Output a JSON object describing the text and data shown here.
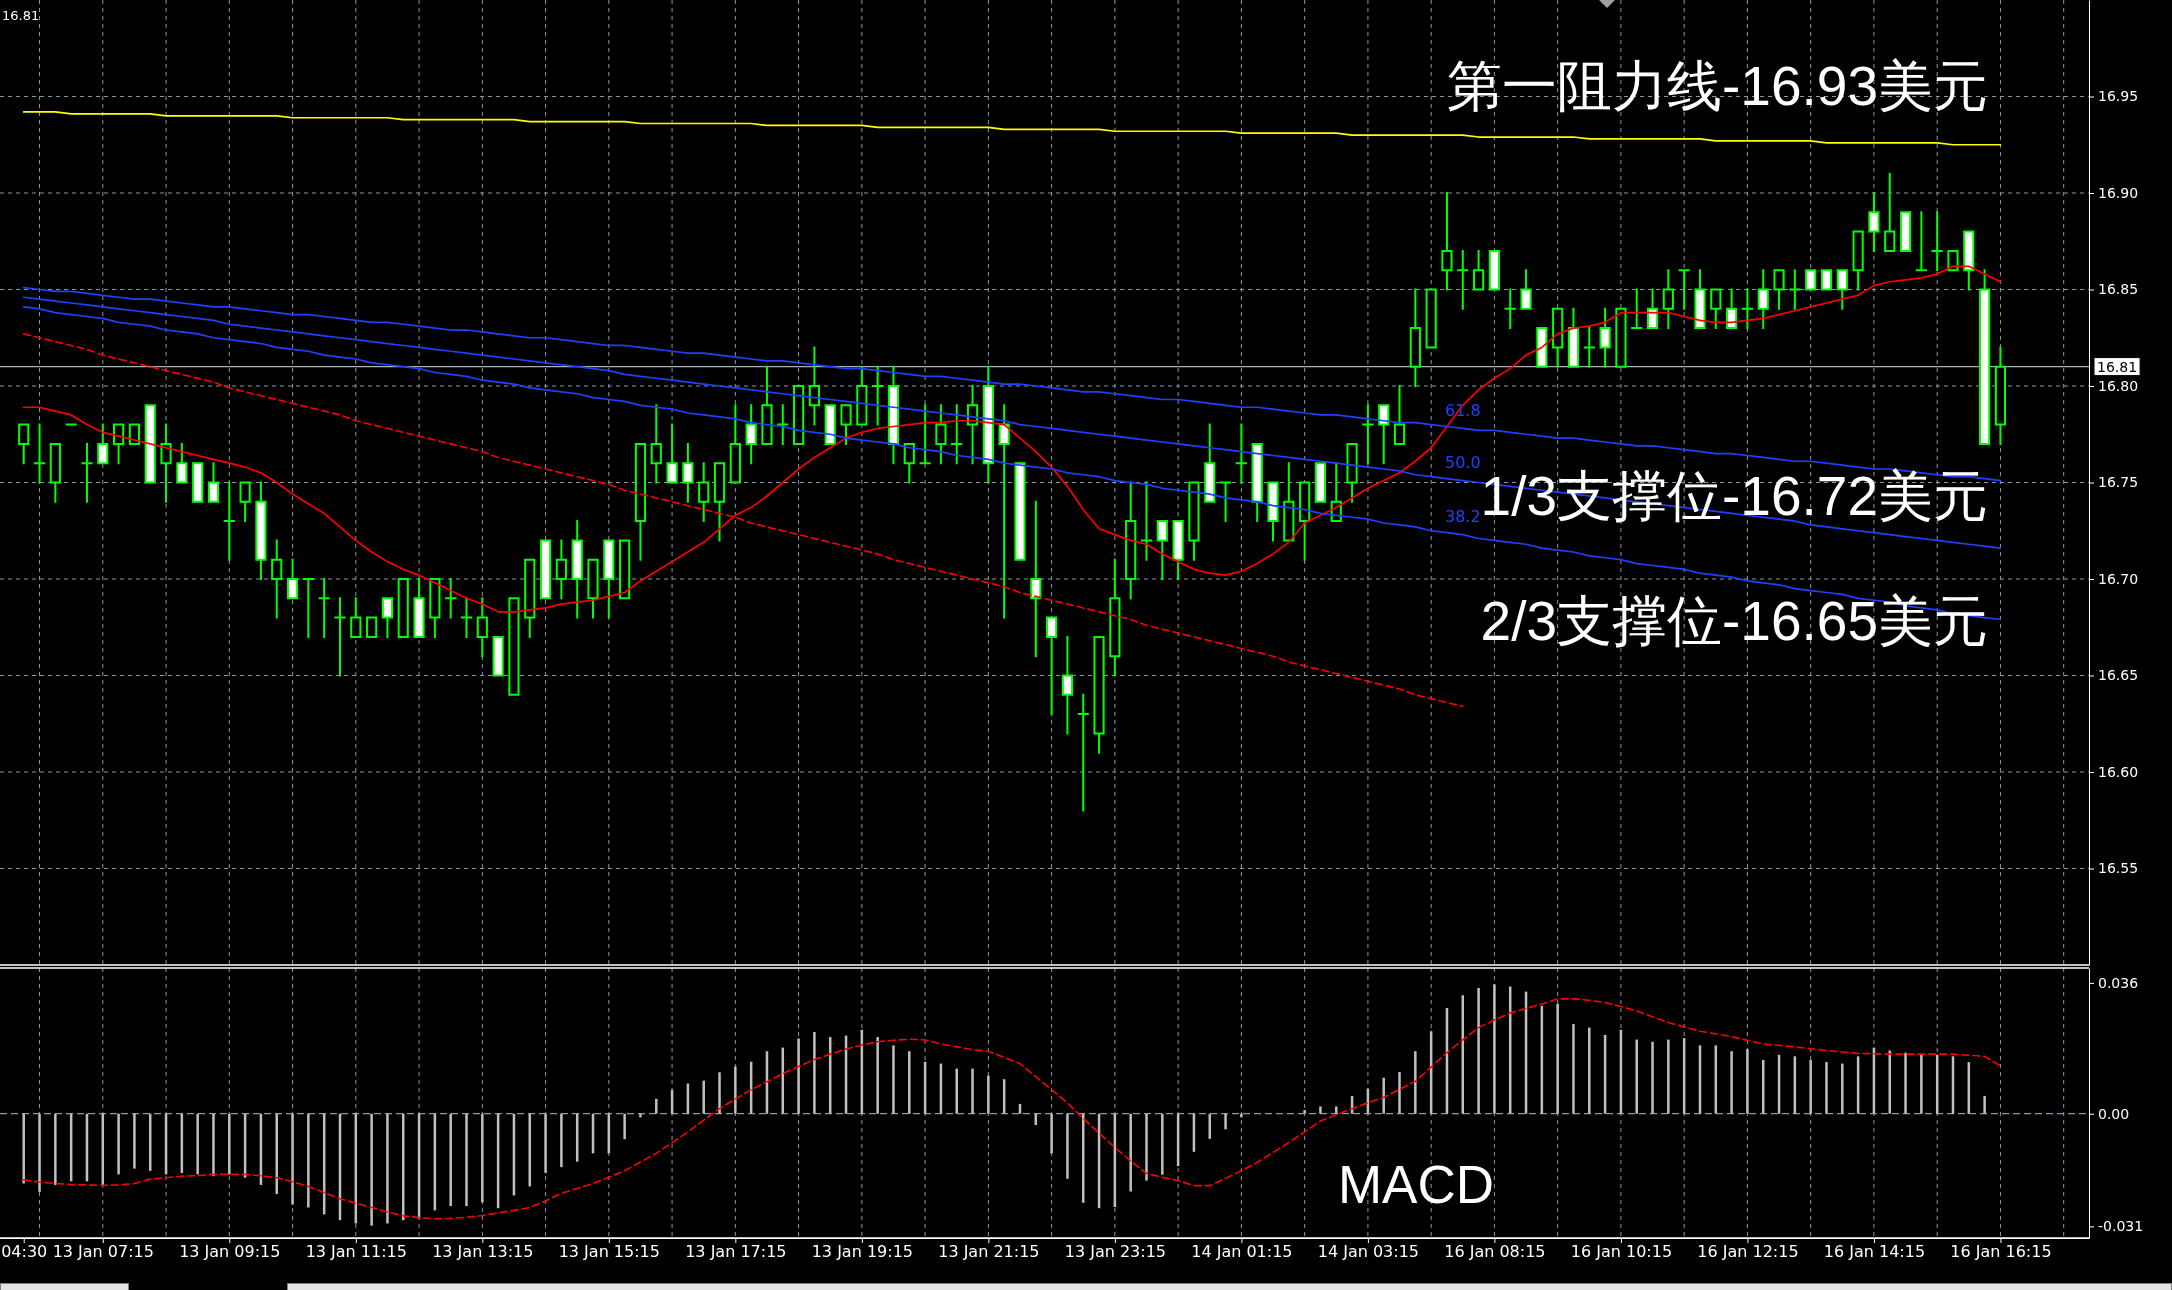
{
  "chart_data": [
    {
      "type": "candlestick",
      "categories": [
        null,
        null,
        null,
        null,
        null,
        null,
        null,
        null,
        null,
        null,
        null,
        null,
        null,
        null,
        null,
        null,
        null,
        null,
        null,
        null,
        null,
        null,
        null,
        null,
        null,
        null,
        null,
        null,
        null,
        null,
        null,
        null,
        null,
        null,
        null,
        null,
        null,
        null,
        null,
        null,
        null,
        null,
        null,
        null,
        null,
        null,
        null,
        null,
        null,
        null,
        null,
        null,
        null,
        null,
        null,
        null,
        null,
        null,
        null,
        null,
        null,
        null,
        null,
        null,
        null,
        null,
        null,
        null,
        null,
        null,
        null,
        null,
        null,
        null,
        null,
        null,
        null,
        null,
        null,
        null,
        null,
        null,
        null,
        null,
        null,
        null,
        null,
        null,
        null,
        null,
        null,
        null,
        null,
        null,
        null,
        null,
        null,
        null,
        null,
        null,
        null,
        null,
        null,
        null,
        null,
        null,
        null,
        null,
        null,
        null,
        null,
        null,
        null,
        null,
        null,
        null,
        null,
        null,
        null,
        null,
        null,
        null,
        null,
        null,
        null,
        null
      ],
      "ohlc": [
        [
          16.77,
          16.78,
          16.76,
          16.78
        ],
        [
          16.76,
          16.78,
          16.75,
          16.76
        ],
        [
          16.75,
          16.77,
          16.74,
          16.77
        ],
        [
          16.78,
          16.78,
          16.78,
          16.78
        ],
        [
          16.76,
          16.77,
          16.74,
          16.76
        ],
        [
          16.77,
          16.78,
          16.76,
          16.76
        ],
        [
          16.77,
          16.78,
          16.76,
          16.78
        ],
        [
          16.77,
          16.78,
          16.77,
          16.78
        ],
        [
          16.79,
          16.79,
          16.75,
          16.75
        ],
        [
          16.76,
          16.78,
          16.74,
          16.77
        ],
        [
          16.76,
          16.77,
          16.75,
          16.75
        ],
        [
          16.76,
          16.76,
          16.74,
          16.74
        ],
        [
          16.75,
          16.76,
          16.74,
          16.74
        ],
        [
          16.73,
          16.75,
          16.71,
          16.73
        ],
        [
          16.74,
          16.75,
          16.73,
          16.75
        ],
        [
          16.74,
          16.75,
          16.7,
          16.71
        ],
        [
          16.7,
          16.72,
          16.68,
          16.71
        ],
        [
          16.7,
          16.71,
          16.69,
          16.69
        ],
        [
          16.7,
          16.7,
          16.67,
          16.7
        ],
        [
          16.69,
          16.7,
          16.67,
          16.69
        ],
        [
          16.68,
          16.69,
          16.65,
          16.68
        ],
        [
          16.67,
          16.69,
          16.67,
          16.68
        ],
        [
          16.67,
          16.68,
          16.67,
          16.68
        ],
        [
          16.69,
          16.69,
          16.67,
          16.68
        ],
        [
          16.67,
          16.7,
          16.67,
          16.7
        ],
        [
          16.69,
          16.7,
          16.67,
          16.67
        ],
        [
          16.68,
          16.7,
          16.67,
          16.7
        ],
        [
          16.69,
          16.7,
          16.68,
          16.69
        ],
        [
          16.68,
          16.69,
          16.67,
          16.68
        ],
        [
          16.67,
          16.69,
          16.66,
          16.68
        ],
        [
          16.67,
          16.67,
          16.65,
          16.65
        ],
        [
          16.64,
          16.69,
          16.64,
          16.69
        ],
        [
          16.68,
          16.71,
          16.67,
          16.71
        ],
        [
          16.72,
          16.72,
          16.69,
          16.69
        ],
        [
          16.7,
          16.72,
          16.69,
          16.71
        ],
        [
          16.72,
          16.73,
          16.68,
          16.7
        ],
        [
          16.69,
          16.71,
          16.68,
          16.71
        ],
        [
          16.72,
          16.72,
          16.68,
          16.7
        ],
        [
          16.69,
          16.72,
          16.69,
          16.72
        ],
        [
          16.73,
          16.77,
          16.71,
          16.77
        ],
        [
          16.76,
          16.79,
          16.75,
          16.77
        ],
        [
          16.76,
          16.78,
          16.75,
          16.75
        ],
        [
          16.76,
          16.77,
          16.74,
          16.75
        ],
        [
          16.74,
          16.76,
          16.73,
          16.75
        ],
        [
          16.74,
          16.76,
          16.72,
          16.76
        ],
        [
          16.75,
          16.79,
          16.75,
          16.77
        ],
        [
          16.78,
          16.79,
          16.76,
          16.77
        ],
        [
          16.77,
          16.81,
          16.77,
          16.79
        ],
        [
          16.78,
          16.79,
          16.77,
          16.78
        ],
        [
          16.77,
          16.8,
          16.77,
          16.8
        ],
        [
          16.79,
          16.82,
          16.78,
          16.8
        ],
        [
          16.79,
          16.79,
          16.77,
          16.77
        ],
        [
          16.78,
          16.79,
          16.77,
          16.79
        ],
        [
          16.78,
          16.81,
          16.78,
          16.8
        ],
        [
          16.8,
          16.81,
          16.78,
          16.8
        ],
        [
          16.8,
          16.81,
          16.76,
          16.77
        ],
        [
          16.76,
          16.77,
          16.75,
          16.77
        ],
        [
          16.76,
          16.79,
          16.76,
          16.76
        ],
        [
          16.77,
          16.79,
          16.76,
          16.78
        ],
        [
          16.77,
          16.79,
          16.76,
          16.77
        ],
        [
          16.78,
          16.8,
          16.76,
          16.79
        ],
        [
          16.8,
          16.81,
          16.75,
          16.76
        ],
        [
          16.78,
          16.79,
          16.68,
          16.77
        ],
        [
          16.76,
          16.76,
          16.71,
          16.71
        ],
        [
          16.7,
          16.74,
          16.66,
          16.69
        ],
        [
          16.68,
          16.68,
          16.63,
          16.67
        ],
        [
          16.65,
          16.67,
          16.62,
          16.64
        ],
        [
          16.63,
          16.64,
          16.58,
          16.63
        ],
        [
          16.62,
          16.67,
          16.61,
          16.67
        ],
        [
          16.66,
          16.71,
          16.65,
          16.69
        ],
        [
          16.7,
          16.75,
          16.69,
          16.73
        ],
        [
          16.72,
          16.75,
          16.71,
          16.72
        ],
        [
          16.73,
          16.73,
          16.7,
          16.72
        ],
        [
          16.73,
          16.73,
          16.7,
          16.71
        ],
        [
          16.72,
          16.75,
          16.71,
          16.75
        ],
        [
          16.76,
          16.78,
          16.74,
          16.74
        ],
        [
          16.75,
          16.75,
          16.73,
          16.75
        ],
        [
          16.76,
          16.78,
          16.75,
          16.76
        ],
        [
          16.77,
          16.77,
          16.73,
          16.74
        ],
        [
          16.75,
          16.75,
          16.72,
          16.73
        ],
        [
          16.72,
          16.76,
          16.72,
          16.74
        ],
        [
          16.73,
          16.75,
          16.71,
          16.75
        ],
        [
          16.76,
          16.76,
          16.74,
          16.74
        ],
        [
          16.73,
          16.76,
          16.73,
          16.74
        ],
        [
          16.75,
          16.77,
          16.74,
          16.77
        ],
        [
          16.78,
          16.79,
          16.76,
          16.78
        ],
        [
          16.79,
          16.79,
          16.76,
          16.78
        ],
        [
          16.77,
          16.8,
          16.77,
          16.78
        ],
        [
          16.81,
          16.85,
          16.8,
          16.83
        ],
        [
          16.82,
          16.85,
          16.82,
          16.85
        ],
        [
          16.86,
          16.9,
          16.85,
          16.87
        ],
        [
          16.86,
          16.87,
          16.84,
          16.86
        ],
        [
          16.85,
          16.87,
          16.85,
          16.86
        ],
        [
          16.87,
          16.87,
          16.85,
          16.85
        ],
        [
          16.84,
          16.85,
          16.83,
          16.84
        ],
        [
          16.85,
          16.86,
          16.84,
          16.84
        ],
        [
          16.83,
          16.83,
          16.81,
          16.81
        ],
        [
          16.82,
          16.84,
          16.81,
          16.84
        ],
        [
          16.83,
          16.84,
          16.81,
          16.81
        ],
        [
          16.82,
          16.83,
          16.81,
          16.82
        ],
        [
          16.83,
          16.84,
          16.81,
          16.82
        ],
        [
          16.81,
          16.84,
          16.81,
          16.84
        ],
        [
          16.83,
          16.85,
          16.83,
          16.83
        ],
        [
          16.84,
          16.85,
          16.83,
          16.83
        ],
        [
          16.84,
          16.86,
          16.83,
          16.85
        ],
        [
          16.86,
          16.86,
          16.84,
          16.86
        ],
        [
          16.85,
          16.86,
          16.83,
          16.83
        ],
        [
          16.84,
          16.85,
          16.83,
          16.85
        ],
        [
          16.84,
          16.85,
          16.83,
          16.83
        ],
        [
          16.84,
          16.85,
          16.83,
          16.84
        ],
        [
          16.85,
          16.86,
          16.83,
          16.84
        ],
        [
          16.85,
          16.86,
          16.84,
          16.86
        ],
        [
          16.85,
          16.86,
          16.84,
          16.85
        ],
        [
          16.86,
          16.86,
          16.85,
          16.85
        ],
        [
          16.86,
          16.86,
          16.85,
          16.85
        ],
        [
          16.86,
          16.86,
          16.84,
          16.85
        ],
        [
          16.86,
          16.88,
          16.85,
          16.88
        ],
        [
          16.89,
          16.9,
          16.87,
          16.88
        ],
        [
          16.87,
          16.91,
          16.87,
          16.88
        ],
        [
          16.89,
          16.89,
          16.87,
          16.87
        ],
        [
          16.86,
          16.89,
          16.86,
          16.86
        ],
        [
          16.87,
          16.89,
          16.86,
          16.87
        ],
        [
          16.86,
          16.87,
          16.86,
          16.87
        ],
        [
          16.88,
          16.88,
          16.85,
          16.86
        ],
        [
          16.85,
          16.86,
          16.77,
          16.77
        ],
        [
          16.78,
          16.82,
          16.77,
          16.81
        ]
      ],
      "color": "#00ff00",
      "colors": [
        "#000000",
        "#00ff00",
        "#000000",
        "#00ff00",
        "#00ff00",
        "#ffffff",
        "#000000",
        "#000000",
        "#ffffff",
        "#000000",
        "#ffffff",
        "#ffffff",
        "#ffffff",
        "#00ff00",
        "#000000",
        "#ffffff",
        "#000000",
        "#ffffff",
        "#00ff00",
        "#00ff00",
        "#00ff00",
        "#000000",
        "#000000",
        "#ffffff",
        "#000000",
        "#ffffff",
        "#000000",
        "#00ff00",
        "#00ff00",
        "#000000",
        "#ffffff",
        "#000000",
        "#000000",
        "#ffffff",
        "#000000",
        "#ffffff",
        "#000000",
        "#ffffff",
        "#000000",
        "#000000",
        "#000000",
        "#ffffff",
        "#ffffff",
        "#000000",
        "#000000",
        "#000000",
        "#ffffff",
        "#000000",
        "#00ff00",
        "#000000",
        "#000000",
        "#ffffff",
        "#000000",
        "#000000",
        "#00ff00",
        "#ffffff",
        "#000000",
        "#00ff00",
        "#000000",
        "#00ff00",
        "#000000",
        "#ffffff",
        "#ffffff",
        "#ffffff",
        "#ffffff",
        "#ffffff",
        "#ffffff",
        "#00ff00",
        "#000000",
        "#000000",
        "#000000",
        "#00ff00",
        "#ffffff",
        "#ffffff",
        "#000000",
        "#ffffff",
        "#00ff00",
        "#00ff00",
        "#ffffff",
        "#ffffff",
        "#000000",
        "#000000",
        "#ffffff",
        "#000000",
        "#000000",
        "#00ff00",
        "#ffffff",
        "#000000",
        "#000000",
        "#000000",
        "#000000",
        "#00ff00",
        "#000000",
        "#ffffff",
        "#00ff00",
        "#ffffff",
        "#ffffff",
        "#000000",
        "#ffffff",
        "#00ff00",
        "#ffffff",
        "#000000",
        "#00ff00",
        "#ffffff",
        "#000000",
        "#00ff00",
        "#ffffff",
        "#000000",
        "#ffffff",
        "#00ff00",
        "#ffffff",
        "#000000",
        "#00ff00",
        "#ffffff",
        "#ffffff",
        "#ffffff",
        "#000000",
        "#ffffff",
        "#000000",
        "#ffffff",
        "#00ff00",
        "#00ff00",
        "#000000",
        "#ffffff",
        "#ffffff",
        "#000000"
      ],
      "series": [
        {
          "type": "line",
          "color": "#ff0000",
          "values": [
            16.789,
            16.789,
            16.787,
            16.785,
            16.78,
            16.776,
            16.774,
            16.772,
            16.77,
            16.768,
            16.766,
            16.764,
            16.762,
            16.76,
            16.758,
            16.755,
            16.75,
            16.744,
            16.739,
            16.734,
            16.727,
            16.72,
            16.714,
            16.709,
            16.705,
            16.702,
            16.698,
            16.694,
            16.69,
            16.687,
            16.683,
            16.683,
            16.684,
            16.685,
            16.687,
            16.688,
            16.689,
            16.691,
            16.693,
            16.699,
            16.704,
            16.709,
            16.714,
            16.719,
            16.726,
            16.733,
            16.737,
            16.743,
            16.75,
            16.757,
            16.763,
            16.768,
            16.773,
            16.776,
            16.778,
            16.779,
            16.78,
            16.781,
            16.781,
            16.782,
            16.782,
            16.781,
            16.78,
            16.773,
            16.766,
            16.758,
            16.748,
            16.736,
            16.726,
            16.723,
            16.72,
            16.718,
            16.713,
            16.709,
            16.705,
            16.703,
            16.702,
            16.704,
            16.708,
            16.713,
            16.719,
            16.729,
            16.733,
            16.737,
            16.742,
            16.747,
            16.751,
            16.755,
            16.761,
            16.768,
            16.779,
            16.79,
            16.798,
            16.804,
            16.809,
            16.816,
            16.82,
            16.827,
            16.83,
            16.831,
            16.833,
            16.838,
            16.838,
            16.838,
            16.838,
            16.836,
            16.834,
            16.833,
            16.833,
            16.834,
            16.835,
            16.837,
            16.839,
            16.841,
            16.843,
            16.845,
            16.847,
            16.852,
            16.854,
            16.855,
            16.856,
            16.858,
            16.862,
            16.862,
            16.858,
            16.854
          ]
        },
        {
          "type": "line",
          "color": "#ffff00",
          "values": [
            16.942,
            16.942,
            16.942,
            16.941,
            16.941,
            16.941,
            16.941,
            16.941,
            16.941,
            16.94,
            16.94,
            16.94,
            16.94,
            16.94,
            16.94,
            16.94,
            16.94,
            16.939,
            16.939,
            16.939,
            16.939,
            16.939,
            16.939,
            16.939,
            16.938,
            16.938,
            16.938,
            16.938,
            16.938,
            16.938,
            16.938,
            16.938,
            16.937,
            16.937,
            16.937,
            16.937,
            16.937,
            16.937,
            16.937,
            16.936,
            16.936,
            16.936,
            16.936,
            16.936,
            16.936,
            16.936,
            16.936,
            16.935,
            16.935,
            16.935,
            16.935,
            16.935,
            16.935,
            16.935,
            16.934,
            16.934,
            16.934,
            16.934,
            16.934,
            16.934,
            16.934,
            16.934,
            16.933,
            16.933,
            16.933,
            16.933,
            16.933,
            16.933,
            16.933,
            16.932,
            16.932,
            16.932,
            16.932,
            16.932,
            16.932,
            16.932,
            16.932,
            16.931,
            16.931,
            16.931,
            16.931,
            16.931,
            16.931,
            16.931,
            16.93,
            16.93,
            16.93,
            16.93,
            16.93,
            16.93,
            16.93,
            16.93,
            16.929,
            16.929,
            16.929,
            16.929,
            16.929,
            16.929,
            16.929,
            16.928,
            16.928,
            16.928,
            16.928,
            16.928,
            16.928,
            16.928,
            16.928,
            16.927,
            16.927,
            16.927,
            16.927,
            16.927,
            16.927,
            16.927,
            16.926,
            16.926,
            16.926,
            16.926,
            16.926,
            16.926,
            16.926,
            16.926,
            16.925,
            16.925,
            16.925,
            16.925
          ]
        },
        {
          "type": "line",
          "name": "61.8",
          "color": "#2040ff",
          "values": [
            16.851,
            16.85,
            16.849,
            16.849,
            16.848,
            16.847,
            16.846,
            16.845,
            16.845,
            16.844,
            16.843,
            16.842,
            16.841,
            16.841,
            16.84,
            16.839,
            16.838,
            16.837,
            16.837,
            16.836,
            16.835,
            16.834,
            16.833,
            16.833,
            16.832,
            16.831,
            16.83,
            16.829,
            16.829,
            16.828,
            16.827,
            16.826,
            16.825,
            16.825,
            16.824,
            16.823,
            16.822,
            16.821,
            16.821,
            16.82,
            16.819,
            16.818,
            16.817,
            16.817,
            16.816,
            16.815,
            16.814,
            16.813,
            16.813,
            16.812,
            16.811,
            16.81,
            16.809,
            16.809,
            16.808,
            16.807,
            16.806,
            16.805,
            16.805,
            16.804,
            16.803,
            16.802,
            16.801,
            16.801,
            16.8,
            16.799,
            16.798,
            16.797,
            16.797,
            16.796,
            16.795,
            16.794,
            16.793,
            16.793,
            16.792,
            16.791,
            16.79,
            16.789,
            16.789,
            16.788,
            16.787,
            16.786,
            16.785,
            16.785,
            16.784,
            16.783,
            16.782,
            16.781,
            16.781,
            16.78,
            16.779,
            16.778,
            16.777,
            16.777,
            16.776,
            16.775,
            16.774,
            16.773,
            16.773,
            16.772,
            16.771,
            16.77,
            16.769,
            16.769,
            16.768,
            16.767,
            16.766,
            16.765,
            16.765,
            16.764,
            16.763,
            16.762,
            16.761,
            16.761,
            16.76,
            16.759,
            16.758,
            16.757,
            16.757,
            16.756,
            16.755,
            16.754,
            16.753,
            16.753,
            16.752,
            16.751
          ]
        },
        {
          "type": "line",
          "name": "50.0",
          "color": "#2040ff",
          "values": [
            16.846,
            16.845,
            16.844,
            16.843,
            16.842,
            16.841,
            16.84,
            16.839,
            16.838,
            16.837,
            16.836,
            16.835,
            16.834,
            16.832,
            16.831,
            16.83,
            16.829,
            16.828,
            16.827,
            16.826,
            16.825,
            16.824,
            16.823,
            16.822,
            16.821,
            16.82,
            16.819,
            16.818,
            16.817,
            16.816,
            16.815,
            16.814,
            16.813,
            16.812,
            16.811,
            16.81,
            16.809,
            16.808,
            16.806,
            16.805,
            16.804,
            16.803,
            16.802,
            16.801,
            16.8,
            16.799,
            16.798,
            16.797,
            16.796,
            16.795,
            16.794,
            16.793,
            16.792,
            16.791,
            16.79,
            16.789,
            16.788,
            16.787,
            16.786,
            16.785,
            16.784,
            16.783,
            16.782,
            16.78,
            16.779,
            16.778,
            16.777,
            16.776,
            16.775,
            16.774,
            16.773,
            16.772,
            16.771,
            16.77,
            16.769,
            16.768,
            16.767,
            16.766,
            16.765,
            16.764,
            16.763,
            16.762,
            16.761,
            16.76,
            16.759,
            16.758,
            16.757,
            16.756,
            16.754,
            16.753,
            16.752,
            16.751,
            16.75,
            16.749,
            16.748,
            16.747,
            16.746,
            16.745,
            16.744,
            16.743,
            16.742,
            16.741,
            16.74,
            16.739,
            16.738,
            16.737,
            16.736,
            16.735,
            16.734,
            16.733,
            16.732,
            16.731,
            16.73,
            16.728,
            16.727,
            16.726,
            16.725,
            16.724,
            16.723,
            16.722,
            16.721,
            16.72,
            16.719,
            16.718,
            16.717,
            16.716
          ]
        },
        {
          "type": "line",
          "name": "38.2",
          "color": "#2040ff",
          "values": [
            16.841,
            16.84,
            16.838,
            16.837,
            16.836,
            16.835,
            16.833,
            16.832,
            16.831,
            16.829,
            16.828,
            16.827,
            16.825,
            16.824,
            16.823,
            16.822,
            16.82,
            16.819,
            16.818,
            16.816,
            16.815,
            16.814,
            16.812,
            16.811,
            16.81,
            16.809,
            16.807,
            16.806,
            16.805,
            16.803,
            16.802,
            16.801,
            16.799,
            16.798,
            16.797,
            16.796,
            16.794,
            16.793,
            16.792,
            16.79,
            16.789,
            16.788,
            16.786,
            16.785,
            16.784,
            16.783,
            16.781,
            16.78,
            16.779,
            16.777,
            16.776,
            16.775,
            16.773,
            16.772,
            16.771,
            16.77,
            16.768,
            16.767,
            16.766,
            16.764,
            16.763,
            16.762,
            16.76,
            16.759,
            16.758,
            16.757,
            16.755,
            16.754,
            16.753,
            16.751,
            16.75,
            16.749,
            16.747,
            16.746,
            16.745,
            16.744,
            16.742,
            16.741,
            16.74,
            16.738,
            16.737,
            16.736,
            16.734,
            16.733,
            16.732,
            16.731,
            16.729,
            16.728,
            16.727,
            16.725,
            16.724,
            16.723,
            16.721,
            16.72,
            16.719,
            16.718,
            16.716,
            16.715,
            16.714,
            16.712,
            16.711,
            16.71,
            16.708,
            16.707,
            16.706,
            16.705,
            16.703,
            16.702,
            16.701,
            16.699,
            16.698,
            16.697,
            16.695,
            16.694,
            16.693,
            16.692,
            16.69,
            16.689,
            16.688,
            16.686,
            16.685,
            16.684,
            16.682,
            16.681,
            16.68,
            16.679
          ]
        },
        {
          "type": "line",
          "color": "#ff0000",
          "line_style": "dashed",
          "values": [
            16.827,
            16.825,
            16.823,
            16.821,
            16.819,
            16.816,
            16.814,
            16.812,
            16.81,
            16.808,
            16.806,
            16.804,
            16.802,
            16.799,
            16.797,
            16.795,
            16.793,
            16.791,
            16.789,
            16.787,
            16.785,
            16.782,
            16.78,
            16.778,
            16.776,
            16.774,
            16.772,
            16.77,
            16.768,
            16.766,
            16.763,
            16.761,
            16.759,
            16.757,
            16.755,
            16.753,
            16.751,
            16.749,
            16.746,
            16.744,
            16.742,
            16.74,
            16.738,
            16.736,
            16.734,
            16.732,
            16.729,
            16.727,
            16.725,
            16.723,
            16.721,
            16.719,
            16.717,
            16.715,
            16.713,
            16.71,
            16.708,
            16.706,
            16.704,
            16.702,
            16.7,
            16.698,
            16.696,
            16.693,
            16.691,
            16.689,
            16.687,
            16.685,
            16.683,
            16.681,
            16.679,
            16.676,
            16.674,
            16.672,
            16.67,
            16.668,
            16.666,
            16.664,
            16.662,
            16.66,
            16.657,
            16.655,
            16.653,
            16.651,
            16.649,
            16.647,
            16.645,
            16.643,
            16.64,
            16.638,
            16.636,
            16.634,
            null,
            null,
            null,
            null,
            null,
            null,
            null,
            null,
            null,
            null,
            null,
            null,
            null,
            null,
            null,
            null,
            null,
            null,
            null,
            null,
            null,
            null,
            null,
            null,
            null,
            null,
            null,
            null,
            null,
            null,
            null,
            null,
            null,
            null
          ]
        }
      ],
      "ylim": [
        16.5,
        17.0
      ],
      "yticks": [
        16.55,
        {
          "value": 16.6,
          "label": "16.60"
        },
        16.65,
        {
          "value": 16.7,
          "label": "16.70"
        },
        16.75,
        {
          "value": 16.8,
          "label": "16.80"
        },
        16.85,
        {
          "value": 16.9,
          "label": "16.90"
        },
        16.95
      ],
      "grid": true,
      "tick_labels": "y",
      "ref_lines": [
        {
          "axis": "y",
          "value": 16.81,
          "label": "16.81",
          "color": "#a8b0b8"
        }
      ],
      "annotations": [
        "16.81",
        "第一阻力线-16.93美元",
        "1/3支撑位-16.72美元",
        "2/3支撑位-16.65美元"
      ]
    },
    {
      "type": "bar",
      "categories": [
        "04:30",
        null,
        null,
        null,
        null,
        "13 Jan 07:15",
        null,
        null,
        null,
        null,
        null,
        null,
        null,
        "13 Jan 09:15",
        null,
        null,
        null,
        null,
        null,
        null,
        null,
        "13 Jan 11:15",
        null,
        null,
        null,
        null,
        null,
        null,
        null,
        "13 Jan 13:15",
        null,
        null,
        null,
        null,
        null,
        null,
        null,
        "13 Jan 15:15",
        null,
        null,
        null,
        null,
        null,
        null,
        null,
        "13 Jan 17:15",
        null,
        null,
        null,
        null,
        null,
        null,
        null,
        "13 Jan 19:15",
        null,
        null,
        null,
        null,
        null,
        null,
        null,
        "13 Jan 21:15",
        null,
        null,
        null,
        null,
        null,
        null,
        null,
        "13 Jan 23:15",
        null,
        null,
        null,
        null,
        null,
        null,
        null,
        "14 Jan 01:15",
        null,
        null,
        null,
        null,
        null,
        null,
        null,
        "14 Jan 03:15",
        null,
        null,
        null,
        null,
        null,
        null,
        null,
        "16 Jan 08:15",
        null,
        null,
        null,
        null,
        null,
        null,
        null,
        "16 Jan 10:15",
        null,
        null,
        null,
        null,
        null,
        null,
        null,
        "16 Jan 12:15",
        null,
        null,
        null,
        null,
        null,
        null,
        null,
        "16 Jan 14:15",
        null,
        null,
        null,
        null,
        null,
        null,
        null,
        "16 Jan 16:15"
      ],
      "series": [
        {
          "type": "bar",
          "color": "#c0c0c0",
          "values": [
            -0.0192,
            -0.0215,
            -0.0196,
            -0.0186,
            -0.0186,
            -0.0196,
            -0.0167,
            -0.0151,
            -0.0157,
            -0.0167,
            -0.0163,
            -0.0167,
            -0.0172,
            -0.0167,
            -0.0176,
            -0.0196,
            -0.0221,
            -0.025,
            -0.0258,
            -0.0277,
            -0.0293,
            -0.0302,
            -0.0308,
            -0.0302,
            -0.0293,
            -0.0289,
            -0.0266,
            -0.0254,
            -0.0254,
            -0.0244,
            -0.026,
            -0.0225,
            -0.02,
            -0.0163,
            -0.0147,
            -0.0132,
            -0.0109,
            -0.0109,
            -0.007,
            -0.001,
            0.0041,
            0.0066,
            0.0083,
            0.0091,
            0.0114,
            0.013,
            0.0143,
            0.0172,
            0.0182,
            0.0207,
            0.0225,
            0.0211,
            0.0215,
            0.0231,
            0.0211,
            0.0188,
            0.0172,
            0.0143,
            0.0138,
            0.0124,
            0.0124,
            0.0105,
            0.0095,
            0.0027,
            -0.0031,
            -0.0109,
            -0.0179,
            -0.0245,
            -0.026,
            -0.0257,
            -0.0214,
            -0.0184,
            -0.0168,
            -0.0144,
            -0.0105,
            -0.0069,
            -0.0043,
            -0.001,
            0,
            0,
            0,
            0.001,
            0.002,
            0.002,
            0.0049,
            0.0069,
            0.0099,
            0.0115,
            0.0172,
            0.0227,
            0.0291,
            0.0326,
            0.0346,
            0.0356,
            0.035,
            0.0336,
            0.0297,
            0.0302,
            0.0247,
            0.0237,
            0.0217,
            0.0231,
            0.0204,
            0.0198,
            0.0204,
            0.0208,
            0.0188,
            0.0188,
            0.0172,
            0.0178,
            0.0148,
            0.0162,
            0.0158,
            0.0148,
            0.0142,
            0.0138,
            0.0158,
            0.0182,
            0.0174,
            0.0168,
            0.0164,
            0.0162,
            0.0158,
            0.0142,
            0.0049,
            null
          ]
        },
        {
          "type": "line",
          "color": "#ff0000",
          "line_style": "dashed",
          "values": [
            -0.0182,
            -0.0188,
            -0.0192,
            -0.0195,
            -0.0196,
            -0.0197,
            -0.0196,
            -0.0192,
            -0.018,
            -0.0176,
            -0.0172,
            -0.017,
            -0.0167,
            -0.0167,
            -0.0167,
            -0.0171,
            -0.0176,
            -0.0187,
            -0.02,
            -0.0217,
            -0.0234,
            -0.0246,
            -0.0258,
            -0.027,
            -0.0281,
            -0.0286,
            -0.0289,
            -0.0288,
            -0.0285,
            -0.028,
            -0.0273,
            -0.0266,
            -0.0258,
            -0.024,
            -0.0219,
            -0.0206,
            -0.0192,
            -0.0175,
            -0.0157,
            -0.0133,
            -0.0109,
            -0.008,
            -0.005,
            -0.0018,
            0.0014,
            0.004,
            0.0066,
            0.0088,
            0.011,
            0.013,
            0.0149,
            0.0164,
            0.0178,
            0.0189,
            0.0198,
            0.0202,
            0.0205,
            0.0203,
            0.0192,
            0.0184,
            0.0176,
            0.0172,
            0.0155,
            0.0138,
            0.0102,
            0.0066,
            0.003,
            -0.0013,
            -0.0053,
            -0.0093,
            -0.013,
            -0.0164,
            -0.0175,
            -0.0184,
            -0.0198,
            -0.0198,
            -0.0178,
            -0.0157,
            -0.0134,
            -0.0107,
            -0.0079,
            -0.005,
            -0.002,
            -0.0003,
            0.0014,
            0.003,
            0.0045,
            0.0067,
            0.0089,
            0.0128,
            0.0168,
            0.0203,
            0.0237,
            0.0258,
            0.0277,
            0.029,
            0.0302,
            0.0316,
            0.0316,
            0.0312,
            0.0306,
            0.0295,
            0.0283,
            0.0267,
            0.0251,
            0.0239,
            0.0227,
            0.022,
            0.0212,
            0.0202,
            0.0192,
            0.0188,
            0.0184,
            0.0179,
            0.0174,
            0.017,
            0.0166,
            0.0165,
            0.0164,
            0.0164,
            0.0164,
            0.0164,
            0.0164,
            0.0161,
            0.0158,
            0.0132
          ]
        }
      ],
      "ylim": [
        -0.0342,
        0.0401
      ],
      "yticks": [
        -0.031,
        {
          "value": 0,
          "label": "0.00"
        },
        0.036
      ],
      "grid": "x",
      "ref_lines": [
        {
          "axis": "y",
          "value": 0,
          "color": "#8899aa",
          "line_style": "dashed"
        }
      ],
      "annotations": [
        "MACD"
      ]
    }
  ]
}
